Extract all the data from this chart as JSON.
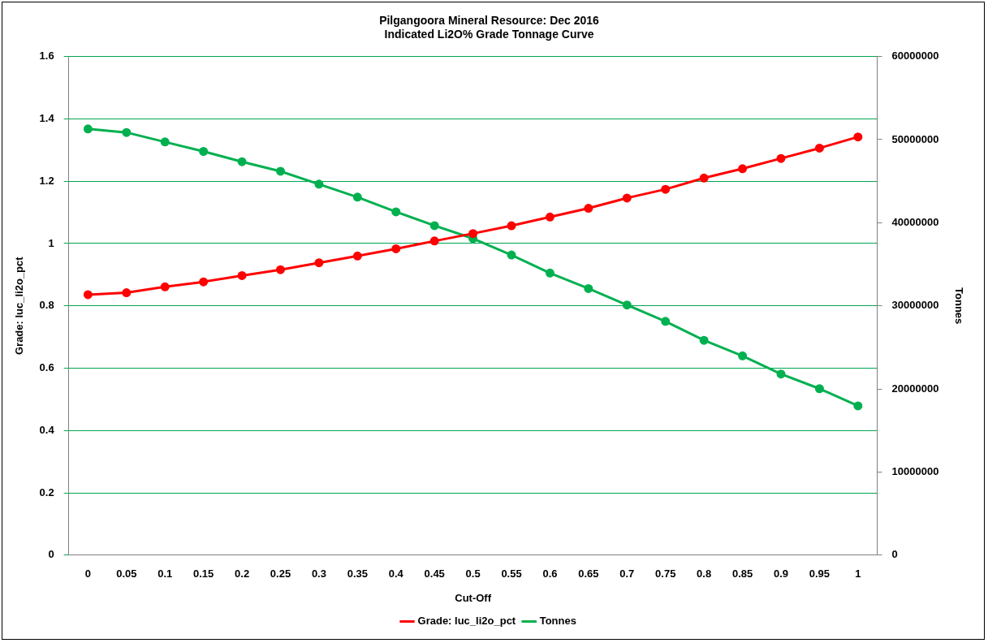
{
  "chart_data": {
    "type": "line",
    "title": "Pilgangoora Mineral Resource: Dec 2016\nIndicated Li2O% Grade Tonnage Curve",
    "xlabel": "Cut-Off",
    "ylabel": "Grade: luc_li2o_pct",
    "y2label": "Tonnes",
    "categories": [
      "0",
      "0.05",
      "0.1",
      "0.15",
      "0.2",
      "0.25",
      "0.3",
      "0.35",
      "0.4",
      "0.45",
      "0.5",
      "0.55",
      "0.6",
      "0.65",
      "0.7",
      "0.75",
      "0.8",
      "0.85",
      "0.9",
      "0.95",
      "1"
    ],
    "series": [
      {
        "name": "Grade: luc_li2o_pct",
        "color": "#ff0000",
        "values": [
          0.836,
          0.842,
          0.861,
          0.877,
          0.897,
          0.916,
          0.938,
          0.96,
          0.983,
          1.008,
          1.032,
          1.057,
          1.085,
          1.113,
          1.146,
          1.174,
          1.21,
          1.24,
          1.273,
          1.306,
          1.342
        ]
      },
      {
        "name": "Tonnes",
        "color": "#00b050",
        "axis": "y2",
        "values": [
          51280000,
          50860000,
          49720000,
          48580000,
          47340000,
          46190000,
          44640000,
          43080000,
          41310000,
          39650000,
          38100000,
          36120000,
          33940000,
          32080000,
          30100000,
          28130000,
          25850000,
          23980000,
          21800000,
          20030000,
          17960000
        ]
      }
    ],
    "ylim": [
      0,
      1.6
    ],
    "yticks": [
      0,
      0.2,
      0.4,
      0.6,
      0.8,
      1,
      1.2,
      1.4,
      1.6
    ],
    "y2lim": [
      0,
      60000000
    ],
    "y2ticks": [
      0,
      10000000,
      20000000,
      30000000,
      40000000,
      50000000,
      60000000
    ],
    "grid": "y",
    "legend": "bottom",
    "marker": "circle",
    "line_style": "solid"
  }
}
